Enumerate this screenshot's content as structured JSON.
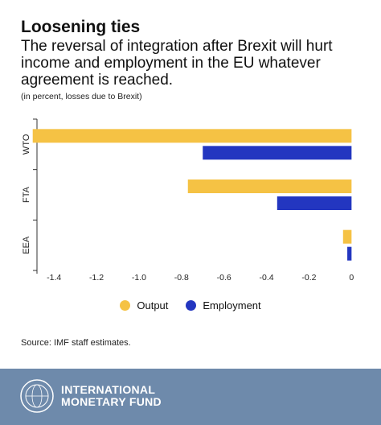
{
  "header": {
    "title": "Loosening ties",
    "subtitle": "The reversal of integration after Brexit will hurt income and employment in the EU whatever agreement is reached.",
    "note": "(in percent, losses due to Brexit)"
  },
  "colors": {
    "output": "#f5c244",
    "employment": "#2336c0",
    "footer": "#6e8aab"
  },
  "chart_data": {
    "type": "bar",
    "orientation": "horizontal",
    "categories": [
      "WTO",
      "FTA",
      "EEA"
    ],
    "series": [
      {
        "name": "Output",
        "values": [
          -1.5,
          -0.77,
          -0.04
        ]
      },
      {
        "name": "Employment",
        "values": [
          -0.7,
          -0.35,
          -0.02
        ]
      }
    ],
    "xlim": [
      -1.48,
      0.01
    ],
    "xticks": [
      -1.4,
      -1.2,
      -1.0,
      -0.8,
      -0.6,
      -0.4,
      -0.2,
      0
    ],
    "xtick_labels": [
      "-1.4",
      "-1.2",
      "-1.0",
      "-0.8",
      "-0.6",
      "-0.4",
      "-0.2",
      "0"
    ],
    "grid": false,
    "legend_position": "bottom"
  },
  "legend": {
    "output_label": "Output",
    "employment_label": "Employment"
  },
  "source": "Source: IMF staff estimates.",
  "footer": {
    "org_line1": "INTERNATIONAL",
    "org_line2": "MONETARY FUND",
    "seal_icon": "imf-seal-icon"
  }
}
